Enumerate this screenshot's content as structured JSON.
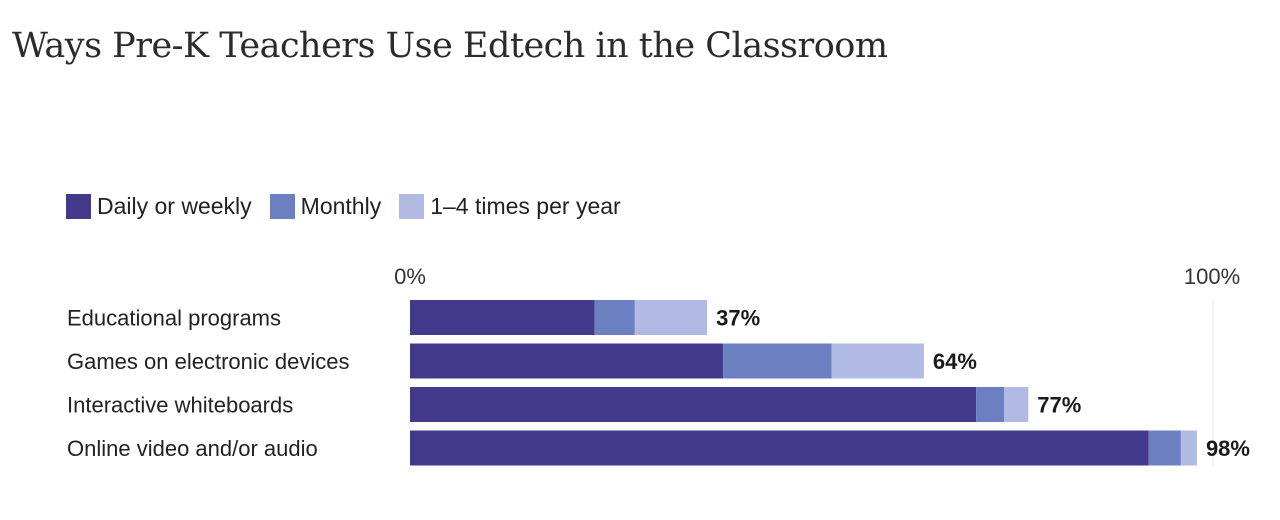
{
  "title": "Ways Pre-K Teachers Use Edtech in the Classroom",
  "chart_data": {
    "type": "bar",
    "orientation": "horizontal",
    "stacked": true,
    "title": "Ways Pre-K Teachers Use Edtech in the Classroom",
    "categories": [
      "Educational programs",
      "Games on electronic devices",
      "Interactive whiteboards",
      "Online video and/or audio"
    ],
    "series": [
      {
        "name": "Daily or weekly",
        "color": "#433a8c",
        "values": [
          23,
          39,
          70.5,
          92
        ]
      },
      {
        "name": "Monthly",
        "color": "#6b7fc1",
        "values": [
          5,
          13.5,
          3.5,
          4
        ]
      },
      {
        "name": "1–4 times per year",
        "color": "#b1bae3",
        "values": [
          9,
          11.5,
          3,
          2
        ]
      }
    ],
    "totals": [
      "37%",
      "64%",
      "77%",
      "98%"
    ],
    "axis": {
      "min_label": "0%",
      "max_label": "100%",
      "range": [
        0,
        100
      ]
    },
    "legend_position": "top-left",
    "grid": false
  }
}
